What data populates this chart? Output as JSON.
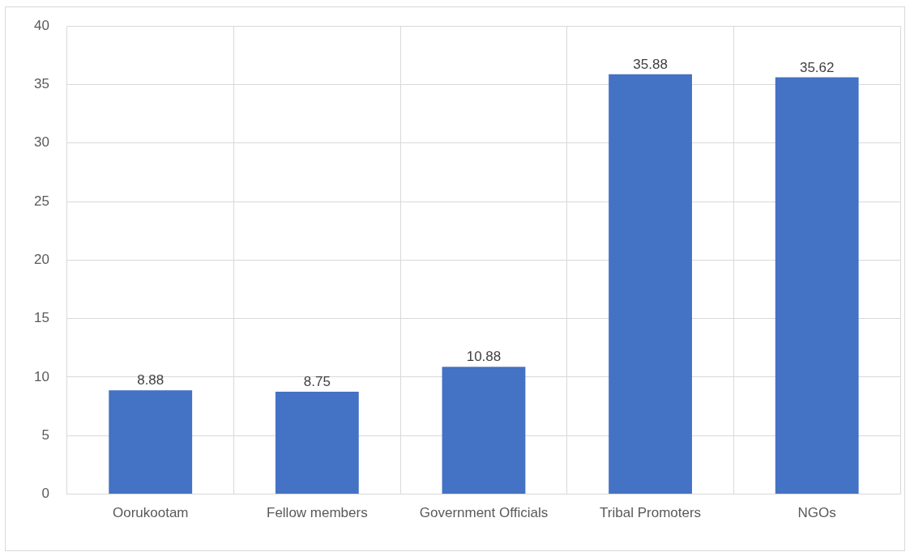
{
  "chart_data": {
    "type": "bar",
    "categories": [
      "Oorukootam",
      "Fellow members",
      "Government Officials",
      "Tribal Promoters",
      "NGOs"
    ],
    "values": [
      8.88,
      8.75,
      10.88,
      35.88,
      35.62
    ],
    "color": "#4472c4",
    "ylim": [
      0,
      40
    ],
    "yticks": [
      0,
      5,
      10,
      15,
      20,
      25,
      30,
      35,
      40
    ],
    "grid": true,
    "data_labels": true,
    "legend": false
  }
}
